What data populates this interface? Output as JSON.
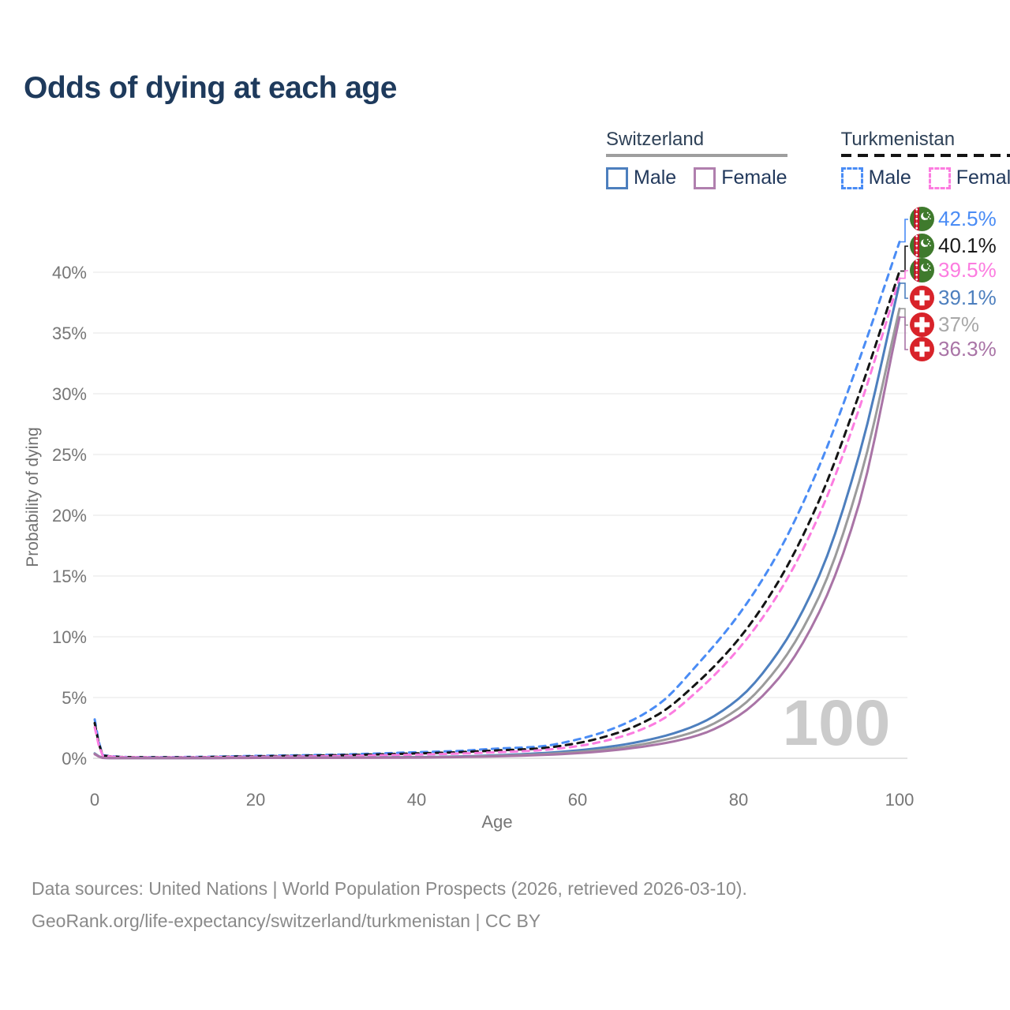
{
  "page": {
    "title": "Odds of dying at each age"
  },
  "legend": {
    "groups": [
      {
        "label": "Switzerland",
        "line_style": "solid",
        "underline_color": "#9e9e9e",
        "items": [
          {
            "label": "Male",
            "color": "#4d7fbe"
          },
          {
            "label": "Female",
            "color": "#b07fae"
          }
        ]
      },
      {
        "label": "Turkmenistan",
        "line_style": "dashed",
        "underline_color": "#141414",
        "items": [
          {
            "label": "Male",
            "color": "#4a8cf5"
          },
          {
            "label": "Female",
            "color": "#fc7ce0"
          }
        ]
      }
    ]
  },
  "end_labels": [
    {
      "value": "42.5%",
      "flag": "turkmenistan",
      "color": "#4a8cf5"
    },
    {
      "value": "40.1%",
      "flag": "turkmenistan",
      "color": "#1a1a1a"
    },
    {
      "value": "39.5%",
      "flag": "turkmenistan",
      "color": "#fc7ce0"
    },
    {
      "value": "39.1%",
      "flag": "switzerland",
      "color": "#4d7fbe"
    },
    {
      "value": "37%",
      "flag": "switzerland",
      "color": "#a8a8a8"
    },
    {
      "value": "36.3%",
      "flag": "switzerland",
      "color": "#a974a6"
    }
  ],
  "watermark": "100",
  "footer": {
    "line1": "Data sources: United Nations | World Population Prospects (2026, retrieved 2026-03-10).",
    "line2": "GeoRank.org/life-expectancy/switzerland/turkmenistan | CC BY"
  },
  "chart_data": {
    "type": "line",
    "title": "Odds of dying at each age",
    "xlabel": "Age",
    "ylabel": "Probability of dying",
    "x_ticks": [
      0,
      20,
      40,
      60,
      80,
      100
    ],
    "y_ticks": [
      0,
      5,
      10,
      15,
      20,
      25,
      30,
      35,
      40
    ],
    "y_tick_suffix": "%",
    "xlim": [
      0,
      100
    ],
    "ylim": [
      0,
      44
    ],
    "grid": true,
    "legend_position": "top-right",
    "x": [
      0,
      1,
      5,
      10,
      20,
      30,
      40,
      45,
      50,
      55,
      60,
      65,
      70,
      75,
      80,
      85,
      90,
      95,
      100
    ],
    "series": [
      {
        "name": "Turkmenistan Male",
        "color": "#4a8cf5",
        "dash": true,
        "end_value": 42.5,
        "values": [
          3.2,
          0.25,
          0.1,
          0.1,
          0.2,
          0.3,
          0.5,
          0.6,
          0.8,
          0.95,
          1.55,
          2.6,
          4.4,
          7.8,
          11.8,
          17.0,
          24.0,
          32.8,
          42.5
        ]
      },
      {
        "name": "Turkmenistan Both sexes",
        "color": "#141414",
        "dash": true,
        "end_value": 40.1,
        "values": [
          2.9,
          0.22,
          0.09,
          0.08,
          0.16,
          0.25,
          0.4,
          0.5,
          0.65,
          0.8,
          1.25,
          2.1,
          3.6,
          6.3,
          9.8,
          14.6,
          21.2,
          30.0,
          40.1
        ]
      },
      {
        "name": "Turkmenistan Female",
        "color": "#fc7ce0",
        "dash": true,
        "end_value": 39.5,
        "values": [
          2.55,
          0.2,
          0.08,
          0.07,
          0.12,
          0.18,
          0.3,
          0.38,
          0.5,
          0.65,
          1.0,
          1.7,
          3.0,
          5.6,
          9.0,
          13.6,
          20.0,
          28.8,
          39.5
        ]
      },
      {
        "name": "Switzerland Male",
        "color": "#4d7fbe",
        "dash": false,
        "end_value": 39.1,
        "values": [
          0.4,
          0.03,
          0.01,
          0.01,
          0.05,
          0.06,
          0.1,
          0.15,
          0.25,
          0.4,
          0.65,
          1.05,
          1.7,
          2.8,
          4.9,
          8.8,
          15.0,
          25.0,
          39.1
        ]
      },
      {
        "name": "Switzerland Both sexes",
        "color": "#9b9b9b",
        "dash": false,
        "end_value": 37.0,
        "values": [
          0.37,
          0.03,
          0.01,
          0.01,
          0.04,
          0.05,
          0.08,
          0.12,
          0.2,
          0.32,
          0.52,
          0.85,
          1.4,
          2.3,
          4.1,
          7.6,
          13.3,
          22.8,
          37.0
        ]
      },
      {
        "name": "Switzerland Female",
        "color": "#a974a6",
        "dash": false,
        "end_value": 36.3,
        "values": [
          0.34,
          0.03,
          0.01,
          0.01,
          0.03,
          0.04,
          0.06,
          0.1,
          0.16,
          0.26,
          0.42,
          0.7,
          1.15,
          1.9,
          3.5,
          6.6,
          12.0,
          21.0,
          36.3
        ]
      }
    ]
  }
}
